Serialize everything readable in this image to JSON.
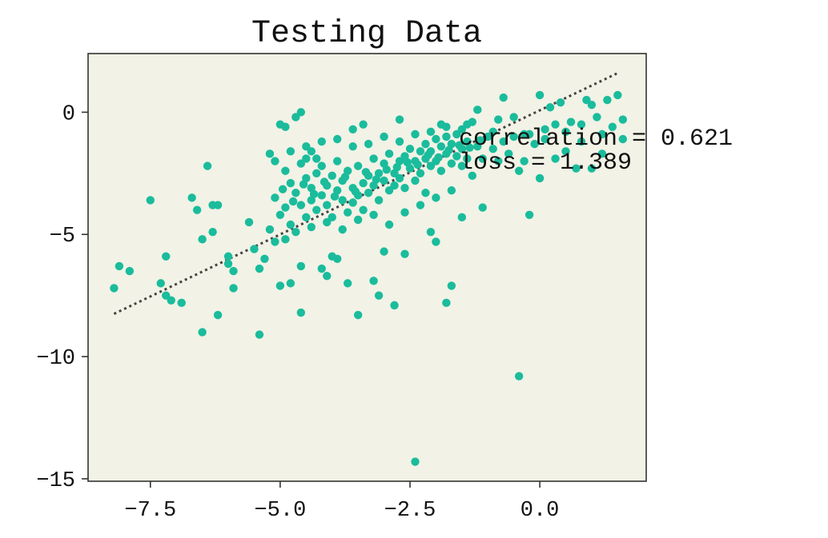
{
  "chart_data": {
    "type": "scatter",
    "title": "Testing Data",
    "xlabel": "",
    "ylabel": "",
    "xlim": [
      -8.7,
      2.05
    ],
    "ylim": [
      -15.1,
      2.4
    ],
    "x_ticks": [
      -7.5,
      -5.0,
      -2.5,
      0.0
    ],
    "x_tick_labels": [
      "−7.5",
      "−5.0",
      "−2.5",
      "0.0"
    ],
    "y_ticks": [
      0,
      -5,
      -10,
      -15
    ],
    "y_tick_labels": [
      "0",
      "−5",
      "−10",
      "−15"
    ],
    "grid": false,
    "legend": "none",
    "annotations": [
      "correlation = 0.621",
      "loss = 1.389"
    ],
    "colors": {
      "points": "#1abc9c",
      "fit_line": "#444444",
      "plot_background": "#f2f2e6",
      "axes": "#333333"
    },
    "fit_line": {
      "style": "dotted",
      "start": [
        -8.2,
        -8.25
      ],
      "end": [
        1.5,
        1.6
      ]
    },
    "series": [
      {
        "values": [
          [
            -8.2,
            -7.2
          ],
          [
            -8.1,
            -6.3
          ],
          [
            -7.9,
            -6.5
          ],
          [
            -7.5,
            -3.6
          ],
          [
            -7.3,
            -7.0
          ],
          [
            -7.2,
            -5.9
          ],
          [
            -7.2,
            -7.5
          ],
          [
            -7.1,
            -7.7
          ],
          [
            -6.9,
            -7.8
          ],
          [
            -6.7,
            -3.5
          ],
          [
            -6.6,
            -4.0
          ],
          [
            -6.5,
            -9.0
          ],
          [
            -6.5,
            -5.2
          ],
          [
            -6.4,
            -2.2
          ],
          [
            -6.3,
            -3.8
          ],
          [
            -6.3,
            -4.9
          ],
          [
            -6.2,
            -8.3
          ],
          [
            -6.2,
            -3.8
          ],
          [
            -6.0,
            -5.9
          ],
          [
            -6.0,
            -6.2
          ],
          [
            -5.9,
            -6.5
          ],
          [
            -5.9,
            -7.2
          ],
          [
            -5.6,
            -4.5
          ],
          [
            -5.5,
            -5.6
          ],
          [
            -5.4,
            -9.1
          ],
          [
            -5.4,
            -6.4
          ],
          [
            -5.3,
            -6.0
          ],
          [
            -5.2,
            -1.7
          ],
          [
            -5.1,
            -5.3
          ],
          [
            -5.0,
            -0.5
          ],
          [
            -5.0,
            -7.1
          ],
          [
            -4.9,
            -0.6
          ],
          [
            -4.8,
            -7.0
          ],
          [
            -4.7,
            -0.2
          ],
          [
            -4.6,
            -6.3
          ],
          [
            -4.6,
            -8.2
          ],
          [
            -4.6,
            0.0
          ],
          [
            -4.5,
            -1.4
          ],
          [
            -4.4,
            -1.6
          ],
          [
            -4.3,
            -1.9
          ],
          [
            -4.2,
            -6.4
          ],
          [
            -4.1,
            -6.7
          ],
          [
            -4.0,
            -5.9
          ],
          [
            -3.9,
            -6.0
          ],
          [
            -3.7,
            -7.0
          ],
          [
            -3.6,
            -0.7
          ],
          [
            -3.5,
            -8.3
          ],
          [
            -3.4,
            -0.5
          ],
          [
            -3.2,
            -6.9
          ],
          [
            -3.1,
            -7.5
          ],
          [
            -3.0,
            -5.7
          ],
          [
            -2.8,
            -7.9
          ],
          [
            -2.7,
            -0.3
          ],
          [
            -2.6,
            -5.8
          ],
          [
            -2.4,
            -14.3
          ],
          [
            -2.2,
            -3.3
          ],
          [
            -2.1,
            -4.9
          ],
          [
            -2.0,
            -5.3
          ],
          [
            -1.9,
            -0.5
          ],
          [
            -1.8,
            -7.8
          ],
          [
            -1.7,
            -7.1
          ],
          [
            -1.5,
            -4.3
          ],
          [
            -1.4,
            -0.5
          ],
          [
            -1.3,
            -0.4
          ],
          [
            -1.2,
            0.1
          ],
          [
            -1.1,
            -3.9
          ],
          [
            -1.0,
            -1.0
          ],
          [
            -0.9,
            -0.8
          ],
          [
            -0.8,
            -0.3
          ],
          [
            -0.7,
            0.6
          ],
          [
            -0.6,
            -1.7
          ],
          [
            -0.5,
            -0.2
          ],
          [
            -0.4,
            -10.8
          ],
          [
            -0.4,
            -2.4
          ],
          [
            -0.3,
            -0.9
          ],
          [
            -0.2,
            -4.2
          ],
          [
            -0.1,
            -1.3
          ],
          [
            0.0,
            0.7
          ],
          [
            0.0,
            -2.7
          ],
          [
            0.1,
            -1.1
          ],
          [
            0.2,
            0.2
          ],
          [
            0.3,
            -0.5
          ],
          [
            0.4,
            0.4
          ],
          [
            0.5,
            -1.6
          ],
          [
            0.6,
            -0.4
          ],
          [
            0.7,
            -2.3
          ],
          [
            0.8,
            -1.2
          ],
          [
            0.9,
            0.5
          ],
          [
            1.0,
            -2.3
          ],
          [
            1.0,
            0.3
          ],
          [
            1.1,
            -0.2
          ],
          [
            1.2,
            -1.7
          ],
          [
            1.3,
            0.5
          ],
          [
            1.4,
            -0.6
          ],
          [
            1.5,
            0.7
          ],
          [
            1.6,
            -1.1
          ],
          [
            1.6,
            -0.3
          ],
          [
            -5.1,
            -3.5
          ],
          [
            -5.0,
            -4.2
          ],
          [
            -4.9,
            -2.4
          ],
          [
            -4.9,
            -3.9
          ],
          [
            -4.8,
            -2.9
          ],
          [
            -4.8,
            -4.6
          ],
          [
            -4.7,
            -3.3
          ],
          [
            -4.6,
            -2.1
          ],
          [
            -4.6,
            -3.8
          ],
          [
            -4.5,
            -4.3
          ],
          [
            -4.5,
            -2.7
          ],
          [
            -4.4,
            -3.1
          ],
          [
            -4.4,
            -3.6
          ],
          [
            -4.3,
            -4.0
          ],
          [
            -4.3,
            -2.5
          ],
          [
            -4.2,
            -3.4
          ],
          [
            -4.2,
            -2.2
          ],
          [
            -4.1,
            -3.0
          ],
          [
            -4.1,
            -3.8
          ],
          [
            -4.0,
            -2.6
          ],
          [
            -4.0,
            -4.3
          ],
          [
            -3.9,
            -3.2
          ],
          [
            -3.9,
            -2.0
          ],
          [
            -3.8,
            -3.6
          ],
          [
            -3.8,
            -2.8
          ],
          [
            -3.7,
            -4.1
          ],
          [
            -3.7,
            -2.4
          ],
          [
            -3.6,
            -3.1
          ],
          [
            -3.6,
            -3.7
          ],
          [
            -3.5,
            -2.2
          ],
          [
            -3.5,
            -3.4
          ],
          [
            -3.4,
            -2.9
          ],
          [
            -3.4,
            -4.0
          ],
          [
            -3.3,
            -2.6
          ],
          [
            -3.3,
            -3.3
          ],
          [
            -3.2,
            -1.9
          ],
          [
            -3.2,
            -3.0
          ],
          [
            -3.1,
            -2.5
          ],
          [
            -3.1,
            -3.6
          ],
          [
            -3.0,
            -2.1
          ],
          [
            -3.0,
            -2.8
          ],
          [
            -2.9,
            -3.2
          ],
          [
            -2.9,
            -1.7
          ],
          [
            -2.8,
            -2.5
          ],
          [
            -2.8,
            -3.0
          ],
          [
            -2.7,
            -2.0
          ],
          [
            -2.7,
            -2.7
          ],
          [
            -2.6,
            -1.8
          ],
          [
            -2.6,
            -3.1
          ],
          [
            -2.5,
            -2.3
          ],
          [
            -2.5,
            -1.5
          ],
          [
            -2.4,
            -2.8
          ],
          [
            -2.4,
            -2.0
          ],
          [
            -2.3,
            -1.6
          ],
          [
            -2.3,
            -2.5
          ],
          [
            -2.2,
            -1.9
          ],
          [
            -2.2,
            -1.3
          ],
          [
            -2.1,
            -2.2
          ],
          [
            -2.1,
            -1.6
          ],
          [
            -2.0,
            -1.1
          ],
          [
            -2.0,
            -2.0
          ],
          [
            -1.9,
            -1.4
          ],
          [
            -1.9,
            -2.4
          ],
          [
            -1.8,
            -1.7
          ],
          [
            -1.8,
            -1.0
          ],
          [
            -1.7,
            -2.1
          ],
          [
            -1.7,
            -1.3
          ],
          [
            -1.6,
            -1.8
          ],
          [
            -1.6,
            -0.9
          ],
          [
            -1.5,
            -1.5
          ],
          [
            -1.5,
            -2.2
          ],
          [
            -1.4,
            -1.2
          ],
          [
            -1.4,
            -1.9
          ],
          [
            -5.2,
            -4.8
          ],
          [
            -5.1,
            -2.0
          ],
          [
            -4.9,
            -5.2
          ],
          [
            -4.8,
            -1.6
          ],
          [
            -4.7,
            -4.9
          ],
          [
            -4.5,
            -1.9
          ],
          [
            -4.4,
            -4.7
          ],
          [
            -4.2,
            -1.2
          ],
          [
            -4.1,
            -4.5
          ],
          [
            -3.9,
            -1.1
          ],
          [
            -3.8,
            -4.8
          ],
          [
            -3.6,
            -1.4
          ],
          [
            -3.5,
            -4.4
          ],
          [
            -3.3,
            -1.3
          ],
          [
            -3.2,
            -4.2
          ],
          [
            -3.0,
            -1.0
          ],
          [
            -2.9,
            -4.6
          ],
          [
            -2.7,
            -1.2
          ],
          [
            -2.6,
            -4.1
          ],
          [
            -2.4,
            -0.9
          ],
          [
            -2.3,
            -3.8
          ],
          [
            -2.1,
            -0.8
          ],
          [
            -2.0,
            -3.5
          ],
          [
            -1.8,
            -0.6
          ],
          [
            -1.7,
            -3.2
          ],
          [
            -1.5,
            -0.7
          ],
          [
            -1.3,
            -2.6
          ],
          [
            -1.2,
            -1.4
          ],
          [
            -1.1,
            -1.9
          ],
          [
            -0.9,
            -1.5
          ],
          [
            -0.8,
            -2.0
          ],
          [
            -0.7,
            -1.2
          ],
          [
            -0.5,
            -1.0
          ],
          [
            -0.3,
            -2.0
          ],
          [
            -0.2,
            -0.9
          ],
          [
            0.1,
            -0.7
          ],
          [
            0.3,
            -1.9
          ],
          [
            0.5,
            -0.8
          ],
          [
            0.8,
            -0.5
          ],
          [
            1.2,
            -0.9
          ],
          [
            -4.95,
            -3.15
          ],
          [
            -4.75,
            -3.65
          ],
          [
            -4.55,
            -2.95
          ],
          [
            -4.35,
            -3.35
          ],
          [
            -4.15,
            -2.85
          ],
          [
            -3.95,
            -3.45
          ],
          [
            -3.75,
            -2.65
          ],
          [
            -3.55,
            -3.25
          ],
          [
            -3.35,
            -2.45
          ],
          [
            -3.15,
            -2.75
          ],
          [
            -2.95,
            -2.35
          ],
          [
            -2.75,
            -2.25
          ],
          [
            -2.55,
            -2.05
          ],
          [
            -2.35,
            -2.15
          ],
          [
            -2.15,
            -1.75
          ],
          [
            -1.95,
            -1.85
          ],
          [
            -1.75,
            -1.55
          ],
          [
            -1.55,
            -1.35
          ],
          [
            -1.35,
            -1.45
          ],
          [
            -1.15,
            -1.15
          ]
        ]
      }
    ]
  }
}
